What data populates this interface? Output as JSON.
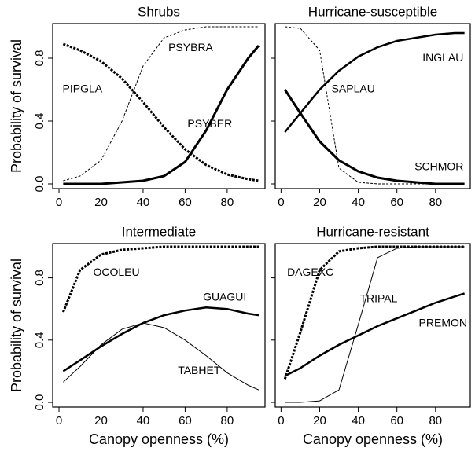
{
  "chart_data": [
    {
      "type": "line",
      "title": "Shrubs",
      "ylabel": "Probability of survival",
      "xlim": [
        -3,
        98
      ],
      "ylim": [
        -0.03,
        1.02
      ],
      "xticks": [
        0,
        20,
        40,
        60,
        80
      ],
      "yticks": [
        {
          "value": 0,
          "label": "0.0"
        },
        0.4,
        0.8
      ],
      "show_ytick_labels": true,
      "x": [
        2,
        10,
        20,
        30,
        40,
        50,
        60,
        70,
        80,
        90,
        95
      ],
      "series": [
        {
          "name": "PSYBRA",
          "color": "#000000",
          "style": "dashed",
          "width": 1,
          "values": [
            0.02,
            0.05,
            0.15,
            0.4,
            0.75,
            0.93,
            0.98,
            1.0,
            1.0,
            1.0,
            1.0
          ]
        },
        {
          "name": "PIPGLA",
          "color": "#000000",
          "style": "dotted",
          "width": 3,
          "values": [
            0.89,
            0.85,
            0.78,
            0.67,
            0.52,
            0.36,
            0.22,
            0.12,
            0.06,
            0.03,
            0.02
          ]
        },
        {
          "name": "PSYBER",
          "color": "#000000",
          "style": "solid",
          "width": 3,
          "values": [
            0.0,
            0.0,
            0.0,
            0.01,
            0.02,
            0.05,
            0.14,
            0.34,
            0.6,
            0.8,
            0.88
          ]
        }
      ]
    },
    {
      "type": "line",
      "title": "Hurricane-susceptible",
      "xlim": [
        -3,
        98
      ],
      "ylim": [
        -0.03,
        1.02
      ],
      "xticks": [
        0,
        20,
        40,
        60,
        80
      ],
      "yticks": [
        0,
        0.4,
        0.8
      ],
      "show_ytick_labels": false,
      "x": [
        2,
        10,
        20,
        30,
        40,
        50,
        60,
        70,
        80,
        90,
        95
      ],
      "series": [
        {
          "name": "INGLAU",
          "color": "#000000",
          "style": "solid",
          "width": 2.5,
          "values": [
            0.33,
            0.45,
            0.6,
            0.72,
            0.81,
            0.87,
            0.91,
            0.93,
            0.95,
            0.96,
            0.96
          ]
        },
        {
          "name": "SAPLAU",
          "color": "#000000",
          "style": "dashed",
          "width": 1,
          "values": [
            1.0,
            0.99,
            0.85,
            0.1,
            0.01,
            0.0,
            0.0,
            0.0,
            0.0,
            0.0,
            0.0
          ]
        },
        {
          "name": "SCHMOR",
          "color": "#000000",
          "style": "solid",
          "width": 3,
          "values": [
            0.6,
            0.45,
            0.27,
            0.15,
            0.08,
            0.04,
            0.02,
            0.01,
            0.0,
            0.0,
            0.0
          ]
        }
      ]
    },
    {
      "type": "line",
      "title": "Intermediate",
      "ylabel": "Probability of survival",
      "xlabel": "Canopy openness (%)",
      "xlim": [
        -3,
        98
      ],
      "ylim": [
        -0.03,
        1.02
      ],
      "xticks": [
        0,
        20,
        40,
        60,
        80
      ],
      "yticks": [
        {
          "value": 0,
          "label": "0.0"
        },
        0.4,
        0.8
      ],
      "show_ytick_labels": true,
      "x": [
        2,
        10,
        20,
        30,
        40,
        50,
        60,
        70,
        80,
        90,
        95
      ],
      "series": [
        {
          "name": "OCOLEU",
          "color": "#000000",
          "style": "dotted",
          "width": 3,
          "values": [
            0.58,
            0.85,
            0.95,
            0.98,
            0.99,
            1.0,
            1.0,
            1.0,
            1.0,
            1.0,
            1.0
          ]
        },
        {
          "name": "GUAGUI",
          "color": "#000000",
          "style": "solid",
          "width": 2.5,
          "values": [
            0.2,
            0.27,
            0.36,
            0.44,
            0.51,
            0.56,
            0.59,
            0.61,
            0.6,
            0.57,
            0.56
          ]
        },
        {
          "name": "TABHET",
          "color": "#000000",
          "style": "solid",
          "width": 1,
          "values": [
            0.13,
            0.23,
            0.37,
            0.47,
            0.51,
            0.48,
            0.4,
            0.3,
            0.19,
            0.11,
            0.08
          ]
        }
      ]
    },
    {
      "type": "line",
      "title": "Hurricane-resistant",
      "xlabel": "Canopy openness (%)",
      "xlim": [
        -3,
        98
      ],
      "ylim": [
        -0.03,
        1.02
      ],
      "xticks": [
        0,
        20,
        40,
        60,
        80
      ],
      "yticks": [
        0,
        0.4,
        0.8
      ],
      "show_ytick_labels": false,
      "x": [
        2,
        10,
        20,
        30,
        40,
        50,
        60,
        70,
        80,
        90,
        95
      ],
      "series": [
        {
          "name": "DAGEXC",
          "color": "#000000",
          "style": "dotted",
          "width": 3,
          "values": [
            0.15,
            0.45,
            0.85,
            0.97,
            0.99,
            1.0,
            1.0,
            1.0,
            1.0,
            1.0,
            1.0
          ]
        },
        {
          "name": "TRIPAL",
          "color": "#000000",
          "style": "solid",
          "width": 1,
          "values": [
            0.0,
            0.0,
            0.01,
            0.08,
            0.5,
            0.93,
            0.99,
            1.0,
            1.0,
            1.0,
            1.0
          ]
        },
        {
          "name": "PREMON",
          "color": "#000000",
          "style": "solid",
          "width": 2.5,
          "values": [
            0.17,
            0.22,
            0.3,
            0.37,
            0.43,
            0.49,
            0.54,
            0.59,
            0.64,
            0.68,
            0.7
          ]
        }
      ]
    }
  ]
}
